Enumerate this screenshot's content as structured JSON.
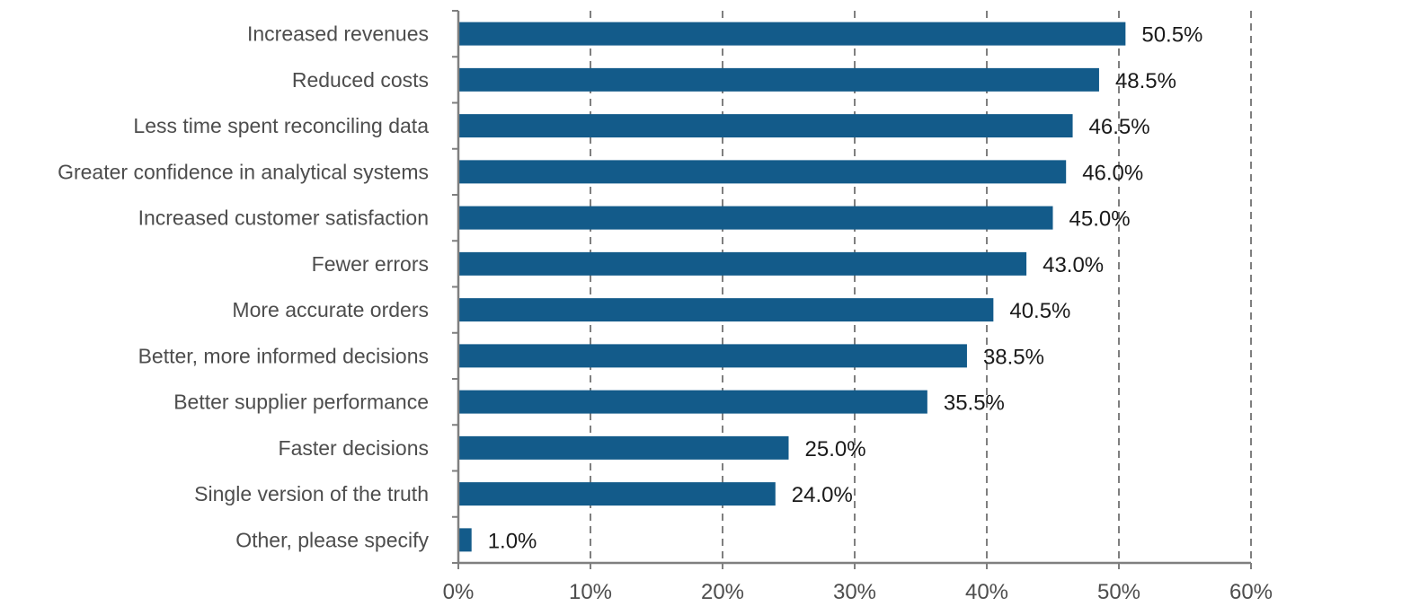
{
  "colors": {
    "bar": "#135b8a",
    "grid": "#7f7f7f",
    "axis": "#7f7f7f"
  },
  "chart_data": {
    "type": "bar",
    "orientation": "horizontal",
    "categories": [
      "Increased revenues",
      "Reduced costs",
      "Less time spent reconciling data",
      "Greater confidence in analytical systems",
      "Increased customer satisfaction",
      "Fewer errors",
      "More accurate orders",
      "Better, more informed decisions",
      "Better supplier performance",
      "Faster decisions",
      "Single version of the truth",
      "Other, please specify"
    ],
    "values": [
      50.5,
      48.5,
      46.5,
      46.0,
      45.0,
      43.0,
      40.5,
      38.5,
      35.5,
      25.0,
      24.0,
      1.0
    ],
    "value_labels": [
      "50.5%",
      "48.5%",
      "46.5%",
      "46.0%",
      "45.0%",
      "43.0%",
      "40.5%",
      "38.5%",
      "35.5%",
      "25.0%",
      "24.0%",
      "1.0%"
    ],
    "xlim": [
      0,
      60
    ],
    "xticks": [
      0,
      10,
      20,
      30,
      40,
      50,
      60
    ],
    "xtick_labels": [
      "0%",
      "10%",
      "20%",
      "30%",
      "40%",
      "50%",
      "60%"
    ],
    "grid": "vertical-dashed",
    "title": "",
    "xlabel": "",
    "ylabel": "",
    "legend": "none"
  }
}
